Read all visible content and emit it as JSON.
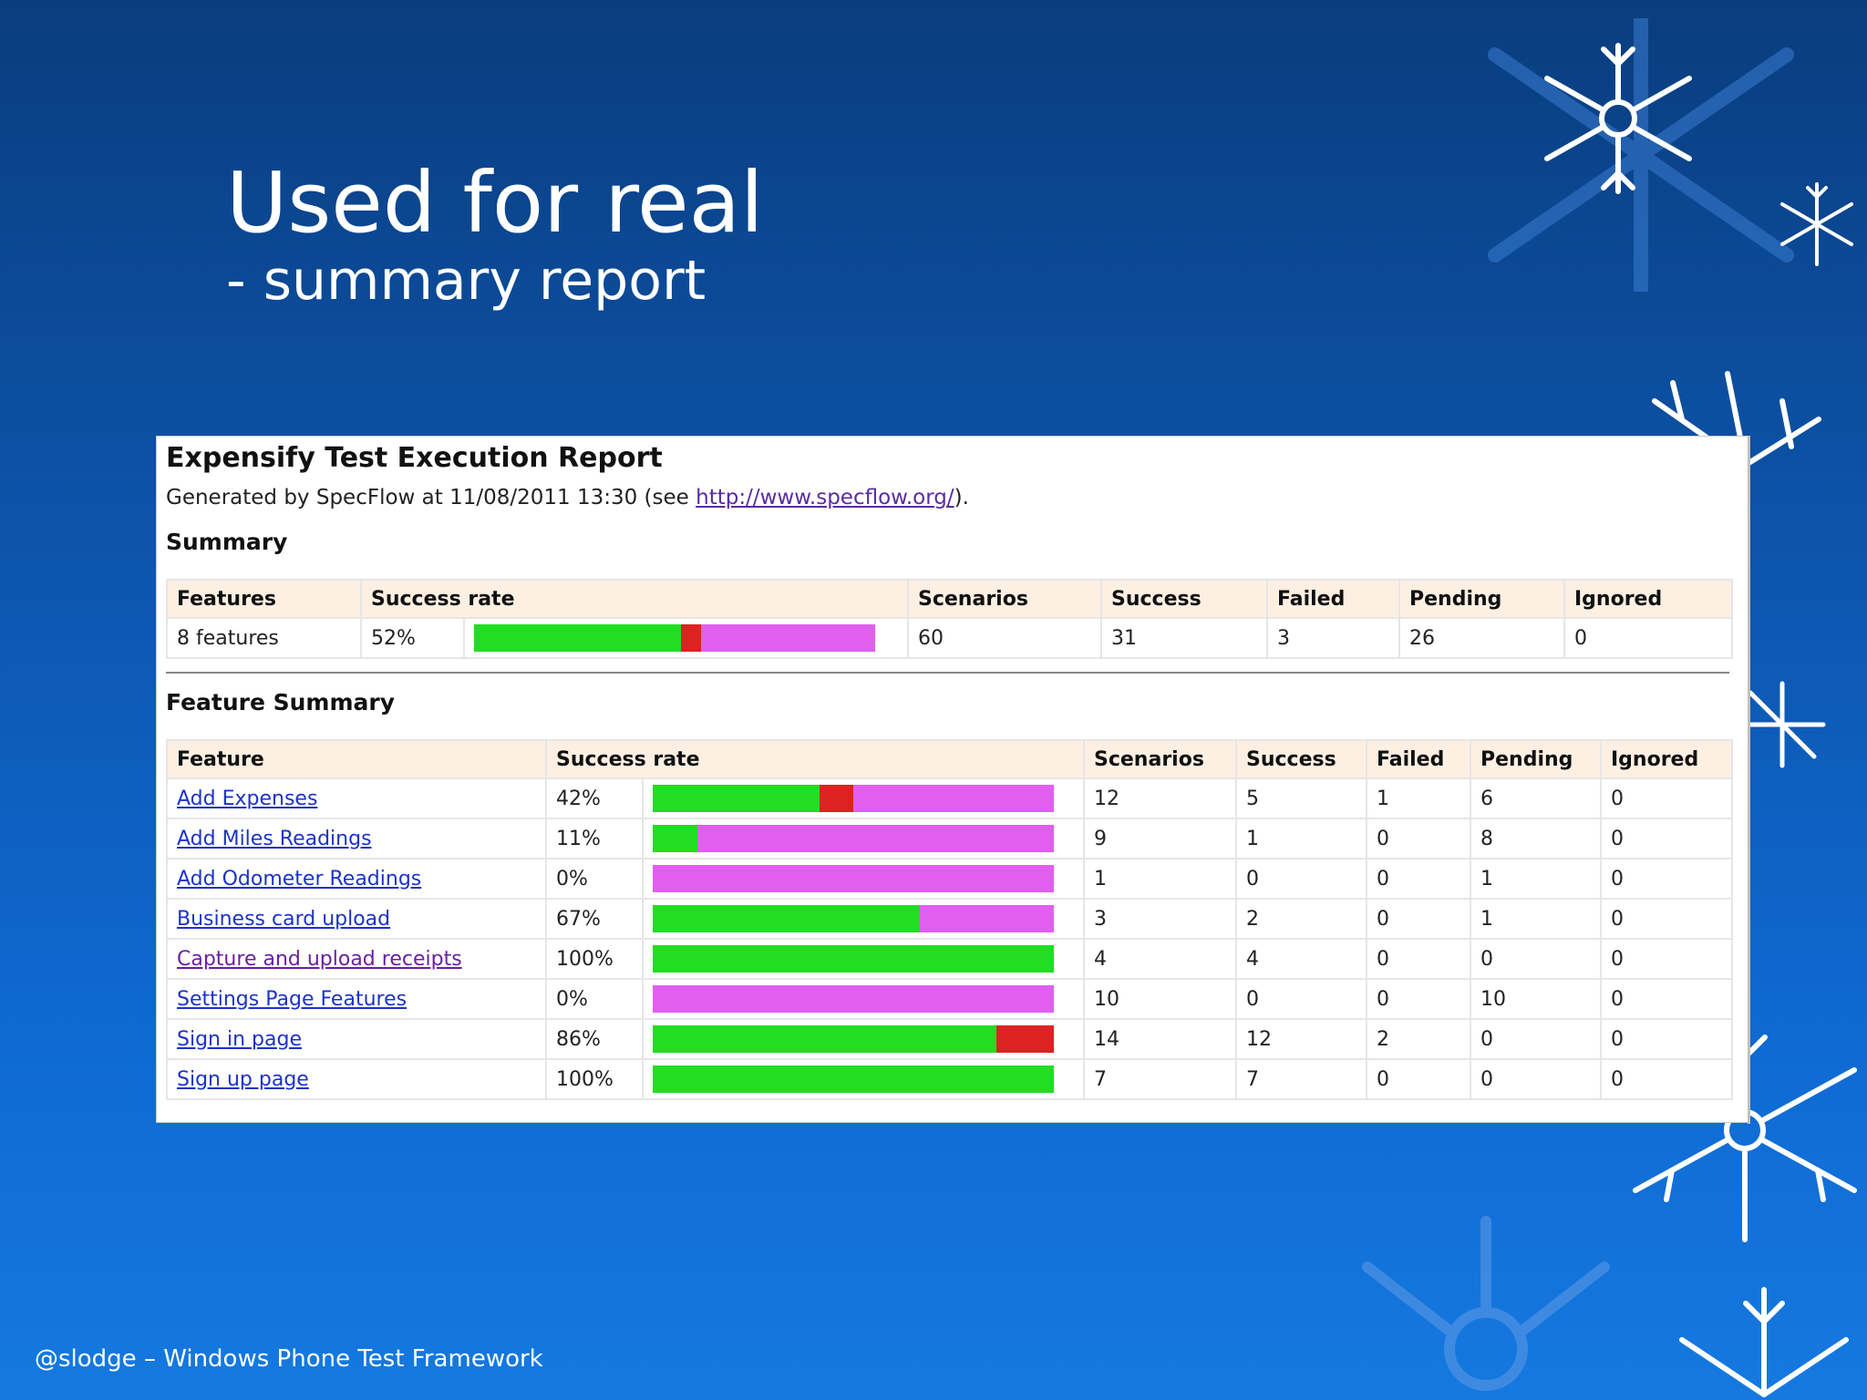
{
  "slide": {
    "title": "Used for real",
    "subtitle": "- summary report",
    "footer": "@slodge – Windows Phone Test Framework"
  },
  "report": {
    "title": "Expensify Test Execution Report",
    "generated_prefix": "Generated by SpecFlow at 11/08/2011 13:30 (see ",
    "generated_link": "http://www.specflow.org/",
    "generated_suffix": ").",
    "summary": {
      "heading": "Summary",
      "headers": [
        "Features",
        "Success rate",
        "Scenarios",
        "Success",
        "Failed",
        "Pending",
        "Ignored"
      ],
      "row": {
        "features": "8 features",
        "rate": "52%",
        "scenarios": "60",
        "success": "31",
        "failed": "3",
        "pending": "26",
        "ignored": "0"
      }
    },
    "feature_summary": {
      "heading": "Feature Summary",
      "headers": [
        "Feature",
        "Success rate",
        "Scenarios",
        "Success",
        "Failed",
        "Pending",
        "Ignored"
      ],
      "rows": [
        {
          "feature": "Add Expenses",
          "rate": "42%",
          "scenarios": "12",
          "success": "5",
          "failed": "1",
          "pending": "6",
          "ignored": "0"
        },
        {
          "feature": "Add Miles Readings",
          "rate": "11%",
          "scenarios": "9",
          "success": "1",
          "failed": "0",
          "pending": "8",
          "ignored": "0"
        },
        {
          "feature": "Add Odometer Readings",
          "rate": "0%",
          "scenarios": "1",
          "success": "0",
          "failed": "0",
          "pending": "1",
          "ignored": "0"
        },
        {
          "feature": "Business card upload",
          "rate": "67%",
          "scenarios": "3",
          "success": "2",
          "failed": "0",
          "pending": "1",
          "ignored": "0"
        },
        {
          "feature": "Capture and upload receipts",
          "rate": "100%",
          "scenarios": "4",
          "success": "4",
          "failed": "0",
          "pending": "0",
          "ignored": "0"
        },
        {
          "feature": "Settings Page Features",
          "rate": "0%",
          "scenarios": "10",
          "success": "0",
          "failed": "0",
          "pending": "10",
          "ignored": "0"
        },
        {
          "feature": "Sign in page",
          "rate": "86%",
          "scenarios": "14",
          "success": "12",
          "failed": "2",
          "pending": "0",
          "ignored": "0"
        },
        {
          "feature": "Sign up page",
          "rate": "100%",
          "scenarios": "7",
          "success": "7",
          "failed": "0",
          "pending": "0",
          "ignored": "0"
        }
      ]
    },
    "colors": {
      "success": "#22dd22",
      "failed": "#dd2222",
      "pending": "#e05ff0",
      "header_bg": "#fdf0e3",
      "link": "#1c33c8"
    }
  }
}
